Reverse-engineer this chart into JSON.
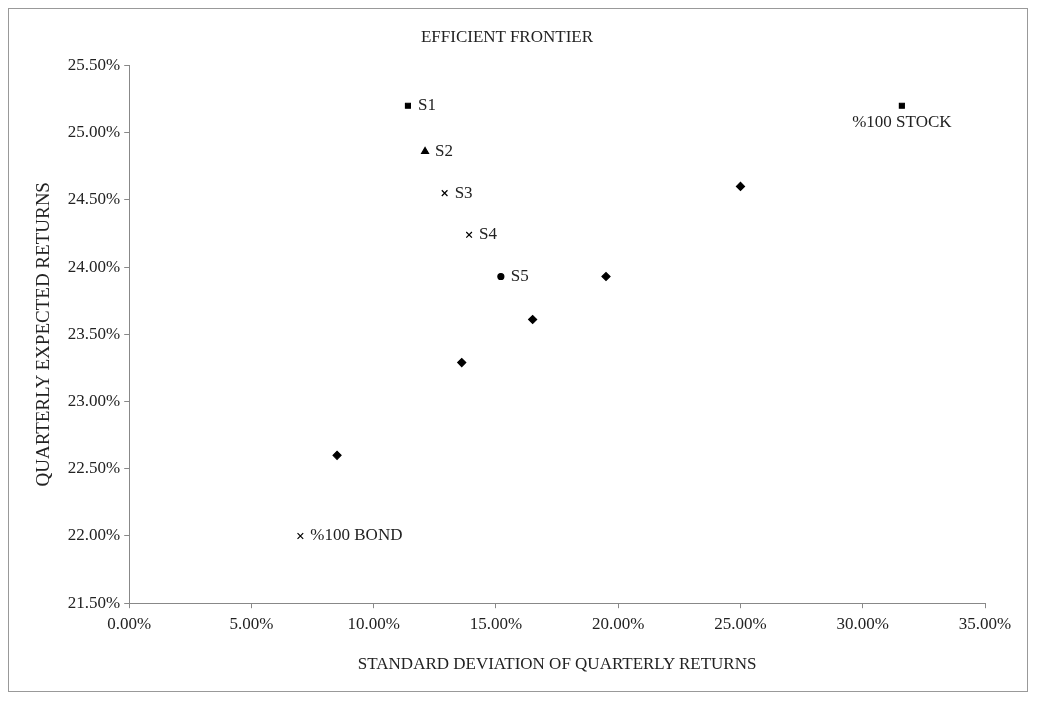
{
  "chart_data": {
    "type": "scatter",
    "title": "EFFICIENT FRONTIER",
    "xlabel": "STANDARD DEVIATION OF QUARTERLY RETURNS",
    "ylabel": "QUARTERLY EXPECTED RETURNS",
    "xlim": [
      0,
      35
    ],
    "ylim": [
      21.5,
      25.5
    ],
    "xticks": [
      {
        "value": 0,
        "label": "0.00%"
      },
      {
        "value": 5,
        "label": "5.00%"
      },
      {
        "value": 10,
        "label": "10.00%"
      },
      {
        "value": 15,
        "label": "15.00%"
      },
      {
        "value": 20,
        "label": "20.00%"
      },
      {
        "value": 25,
        "label": "25.00%"
      },
      {
        "value": 30,
        "label": "30.00%"
      },
      {
        "value": 35,
        "label": "35.00%"
      }
    ],
    "yticks": [
      {
        "value": 21.5,
        "label": "21.50%"
      },
      {
        "value": 22,
        "label": "22.00%"
      },
      {
        "value": 22.5,
        "label": "22.50%"
      },
      {
        "value": 23,
        "label": "23.00%"
      },
      {
        "value": 23.5,
        "label": "23.50%"
      },
      {
        "value": 24,
        "label": "24.00%"
      },
      {
        "value": 24.5,
        "label": "24.50%"
      },
      {
        "value": 25,
        "label": "25.00%"
      },
      {
        "value": 25.5,
        "label": "25.50%"
      }
    ],
    "grid": false,
    "legend": false,
    "series": [
      {
        "name": "S1",
        "color": "#000000",
        "marker": "square",
        "x": [
          11.4
        ],
        "values": [
          25.2
        ]
      },
      {
        "name": "S2",
        "color": "#000000",
        "marker": "triangle",
        "x": [
          12.1
        ],
        "values": [
          24.86
        ]
      },
      {
        "name": "S3",
        "color": "#000000",
        "marker": "cross",
        "x": [
          12.9
        ],
        "values": [
          24.55
        ]
      },
      {
        "name": "S4",
        "color": "#000000",
        "marker": "cross",
        "x": [
          13.9
        ],
        "values": [
          24.24
        ]
      },
      {
        "name": "S5",
        "color": "#000000",
        "marker": "circle",
        "x": [
          15.2
        ],
        "values": [
          23.93
        ]
      },
      {
        "color": "#000000",
        "marker": "diamond",
        "x": [
          8.5,
          13.6,
          16.5,
          19.5,
          25.0
        ],
        "values": [
          22.6,
          23.29,
          23.61,
          23.93,
          24.6
        ]
      },
      {
        "name": "%100 BOND",
        "color": "#000000",
        "marker": "cross",
        "x": [
          7.0
        ],
        "values": [
          22.0
        ]
      },
      {
        "name": "%100 STOCK",
        "color": "#000000",
        "marker": "square",
        "x": [
          31.6
        ],
        "values": [
          25.2
        ]
      }
    ]
  }
}
